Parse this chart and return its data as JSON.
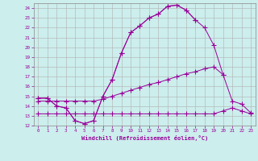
{
  "xlabel": "Windchill (Refroidissement éolien,°C)",
  "bg_color": "#cceeed",
  "grid_color": "#b0b0b0",
  "line_color": "#990099",
  "xlim": [
    -0.5,
    23.5
  ],
  "ylim": [
    12,
    24.5
  ],
  "xticks": [
    0,
    1,
    2,
    3,
    4,
    5,
    6,
    7,
    8,
    9,
    10,
    11,
    12,
    13,
    14,
    15,
    16,
    17,
    18,
    19,
    20,
    21,
    22,
    23
  ],
  "yticks": [
    12,
    13,
    14,
    15,
    16,
    17,
    18,
    19,
    20,
    21,
    22,
    23,
    24
  ],
  "line1_x": [
    0,
    1,
    2,
    3,
    4,
    5,
    6,
    7,
    8,
    9,
    10,
    11,
    12,
    13,
    14,
    15,
    16,
    17,
    18,
    19,
    20,
    21,
    22,
    23
  ],
  "line1_y": [
    14.8,
    14.8,
    14.0,
    13.8,
    12.5,
    12.2,
    12.5,
    15.0,
    16.7,
    19.4,
    21.5,
    22.2,
    23.0,
    23.4,
    24.2,
    24.3,
    23.8,
    22.8,
    null,
    null,
    null,
    null,
    null,
    null
  ],
  "line2_x": [
    0,
    1,
    2,
    3,
    4,
    5,
    6,
    7,
    8,
    9,
    10,
    11,
    12,
    13,
    14,
    15,
    16,
    17,
    18,
    19,
    20,
    21,
    22,
    23
  ],
  "line2_y": [
    14.8,
    14.8,
    14.0,
    13.8,
    12.5,
    12.2,
    12.5,
    15.0,
    16.7,
    19.4,
    21.5,
    22.2,
    23.0,
    23.4,
    24.2,
    24.3,
    23.8,
    22.8,
    22.0,
    20.2,
    17.2,
    14.5,
    14.2,
    13.3
  ],
  "line3_x": [
    0,
    1,
    2,
    3,
    4,
    5,
    6,
    7,
    8,
    9,
    10,
    11,
    12,
    13,
    14,
    15,
    16,
    17,
    18,
    19,
    20
  ],
  "line3_y": [
    14.5,
    14.5,
    14.5,
    14.5,
    14.5,
    14.5,
    14.5,
    14.7,
    15.0,
    15.3,
    15.6,
    15.9,
    16.2,
    16.4,
    16.7,
    17.0,
    17.3,
    17.5,
    17.8,
    18.0,
    17.2
  ],
  "line4_x": [
    0,
    1,
    2,
    3,
    4,
    5,
    6,
    7,
    8,
    9,
    10,
    11,
    12,
    13,
    14,
    15,
    16,
    17,
    18,
    19,
    20,
    21,
    22,
    23
  ],
  "line4_y": [
    13.2,
    13.2,
    13.2,
    13.2,
    13.2,
    13.2,
    13.2,
    13.2,
    13.2,
    13.2,
    13.2,
    13.2,
    13.2,
    13.2,
    13.2,
    13.2,
    13.2,
    13.2,
    13.2,
    13.2,
    13.5,
    13.8,
    13.5,
    13.2
  ]
}
